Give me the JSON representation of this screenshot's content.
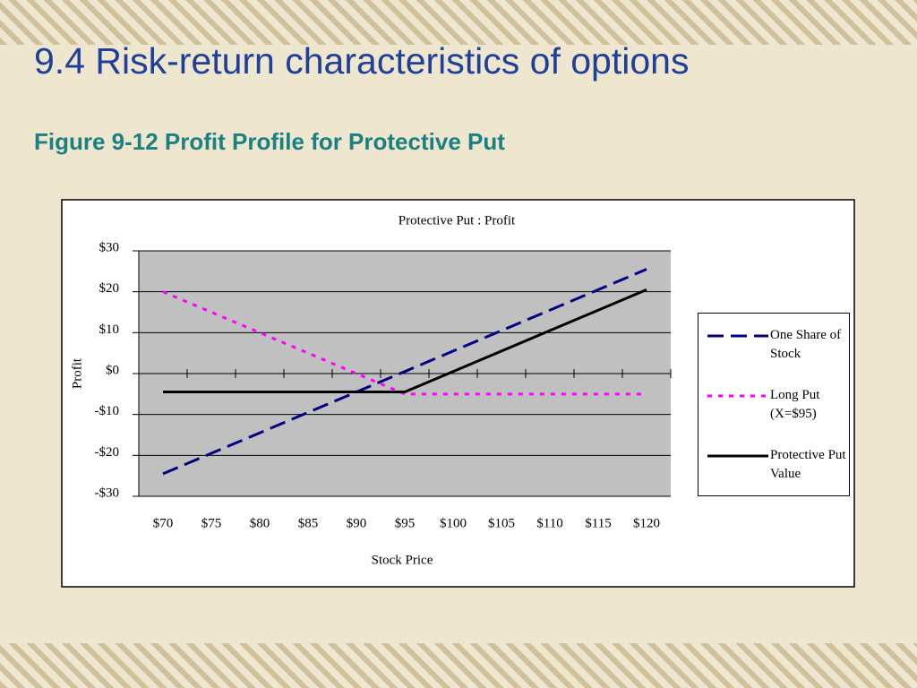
{
  "slide_title": "9.4 Risk-return characteristics of options",
  "slide_subtitle": "Figure 9-12 Profit Profile for Protective Put",
  "chart_data": {
    "type": "line",
    "title": "Protective Put : Profit",
    "x_label": "Stock Price",
    "y_label": "Profit",
    "categories": [
      "$70",
      "$75",
      "$80",
      "$85",
      "$90",
      "$95",
      "$100",
      "$105",
      "$110",
      "$115",
      "$120"
    ],
    "series": [
      {
        "name": "One Share of Stock",
        "color": "#000080",
        "dash": "dash",
        "values": [
          -24.5,
          -19.5,
          -14.5,
          -9.5,
          -4.5,
          0.5,
          5.5,
          10.5,
          15.5,
          20.5,
          25.5
        ]
      },
      {
        "name": "Long Put (X=$95)",
        "color": "#ff00ff",
        "dash": "dot",
        "values": [
          20,
          15,
          10,
          5,
          0,
          -5,
          -5,
          -5,
          -5,
          -5,
          -5
        ]
      },
      {
        "name": "Protective Put Value",
        "color": "#000000",
        "dash": "solid",
        "values": [
          -4.5,
          -4.5,
          -4.5,
          -4.5,
          -4.5,
          -4.5,
          0.5,
          5.5,
          10.5,
          15.5,
          20.5
        ]
      }
    ],
    "ylim": [
      -30,
      30
    ],
    "yticks": [
      {
        "value": -30,
        "label": "-$30"
      },
      {
        "value": -20,
        "label": "-$20"
      },
      {
        "value": -10,
        "label": "-$10"
      },
      {
        "value": 0,
        "label": "$0"
      },
      {
        "value": 10,
        "label": "$10"
      },
      {
        "value": 20,
        "label": "$20"
      },
      {
        "value": 30,
        "label": "$30"
      }
    ],
    "grid": true,
    "legend": "right",
    "plot_background": "#c0c0c0"
  }
}
